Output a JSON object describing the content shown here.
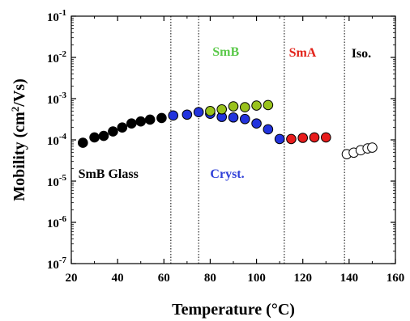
{
  "chart_data": {
    "type": "scatter",
    "xlabel": "Temperature (°C)",
    "ylabel_prefix": "Mobility (cm",
    "ylabel_sup": "2",
    "ylabel_suffix": "/Vs)",
    "xlim": [
      20,
      160
    ],
    "ylim": [
      1e-07,
      0.1
    ],
    "yscale": "log",
    "grid": false,
    "x_ticks": [
      20,
      40,
      60,
      80,
      100,
      120,
      140,
      160
    ],
    "x_tick_labels": [
      "20",
      "40",
      "60",
      "80",
      "100",
      "120",
      "140",
      "160"
    ],
    "y_ticks": [
      -7,
      -6,
      -5,
      -4,
      -3,
      -2,
      -1
    ],
    "y_tick_base": "10",
    "y_tick_exponents": [
      "-7",
      "-6",
      "-5",
      "-4",
      "-3",
      "-2",
      "-1"
    ],
    "phase_boundaries": [
      63,
      75,
      112,
      138
    ],
    "annotations": [
      {
        "text": "SmB Glass",
        "x": 23,
        "y": 1.2e-05,
        "color": "#000000"
      },
      {
        "text": "Cryst.",
        "x": 80,
        "y": 1.2e-05,
        "color": "#2f3fd8"
      },
      {
        "text": "SmB",
        "x": 81,
        "y": 0.011,
        "color": "#5bc94a"
      },
      {
        "text": "SmA",
        "x": 114,
        "y": 0.0105,
        "color": "#e2231a"
      },
      {
        "text": "Iso.",
        "x": 141,
        "y": 0.01,
        "color": "#000000"
      }
    ],
    "series": [
      {
        "fill": "#000000",
        "stroke": "#000000",
        "points": [
          [
            25,
            8.5e-05
          ],
          [
            30,
            0.000115
          ],
          [
            34,
            0.000125
          ],
          [
            38,
            0.00016
          ],
          [
            42,
            0.0002
          ],
          [
            46,
            0.00025
          ],
          [
            50,
            0.00028
          ],
          [
            54,
            0.00031
          ],
          [
            59,
            0.00034
          ]
        ]
      },
      {
        "fill": "#2233dd",
        "stroke": "#000000",
        "points": [
          [
            64,
            0.00039
          ],
          [
            70,
            0.00041
          ],
          [
            75,
            0.00047
          ],
          [
            80,
            0.00043
          ],
          [
            85,
            0.00036
          ],
          [
            90,
            0.00035
          ],
          [
            95,
            0.00032
          ],
          [
            100,
            0.00025
          ],
          [
            105,
            0.00018
          ],
          [
            110,
            0.000105
          ]
        ]
      },
      {
        "fill": "#99c21c",
        "stroke": "#000000",
        "points": [
          [
            80,
            0.0005
          ],
          [
            85,
            0.00055
          ],
          [
            90,
            0.00065
          ],
          [
            95,
            0.00062
          ],
          [
            100,
            0.00068
          ],
          [
            105,
            0.0007
          ]
        ]
      },
      {
        "fill": "#e81c1c",
        "stroke": "#000000",
        "points": [
          [
            115,
            0.000105
          ],
          [
            120,
            0.000112
          ],
          [
            125,
            0.000115
          ],
          [
            130,
            0.000115
          ]
        ]
      },
      {
        "fill": "#ffffff",
        "stroke": "#000000",
        "points": [
          [
            139,
            4.5e-05
          ],
          [
            142,
            4.9e-05
          ],
          [
            145,
            5.6e-05
          ],
          [
            148,
            6.2e-05
          ],
          [
            150,
            6.5e-05
          ]
        ]
      }
    ]
  }
}
